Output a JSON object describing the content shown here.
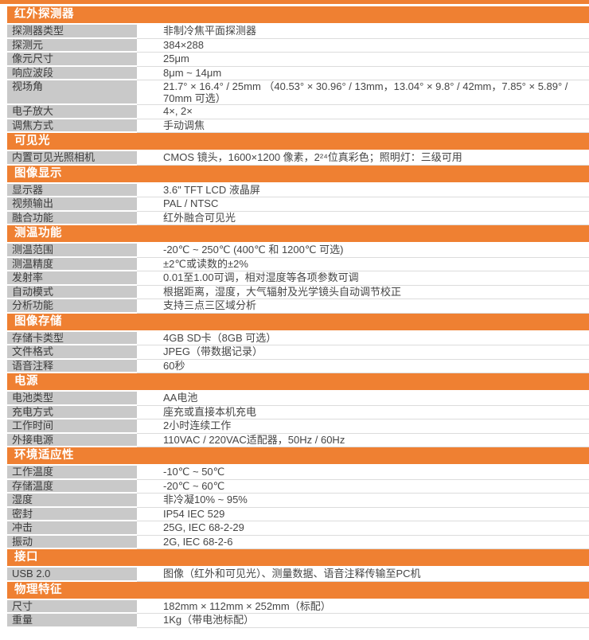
{
  "colors": {
    "accent_orange": "#EF8032",
    "label_gray": "#C9C9C9",
    "row_separator": "#DCDCDC",
    "header_text": "#FFFFFF"
  },
  "sections": [
    {
      "title": "红外探测器",
      "rows": [
        {
          "label": "探测器类型",
          "value": "非制冷焦平面探测器"
        },
        {
          "label": "探测元",
          "value": "384×288"
        },
        {
          "label": "像元尺寸",
          "value": "25μm"
        },
        {
          "label": "响应波段",
          "value": "8μm ~ 14μm"
        },
        {
          "label": "视场角",
          "value": "21.7° × 16.4° / 25mm （40.53° × 30.96° / 13mm，13.04° × 9.8° / 42mm，7.85° × 5.89° / 70mm 可选）"
        },
        {
          "label": "电子放大",
          "value": "4×, 2×"
        },
        {
          "label": "调焦方式",
          "value": "手动调焦"
        }
      ]
    },
    {
      "title": "可见光",
      "rows": [
        {
          "label": "内置可见光照相机",
          "value": "CMOS 镜头，1600×1200 像素，2²⁴位真彩色；照明灯：三级可用"
        }
      ]
    },
    {
      "title": "图像显示",
      "rows": [
        {
          "label": "显示器",
          "value": "3.6\" TFT LCD 液晶屏"
        },
        {
          "label": "视频输出",
          "value": "PAL / NTSC"
        },
        {
          "label": "融合功能",
          "value": "红外融合可见光"
        }
      ]
    },
    {
      "title": "测温功能",
      "rows": [
        {
          "label": "测温范围",
          "value": "-20℃ ~ 250℃ (400℃ 和 1200℃ 可选)"
        },
        {
          "label": "测温精度",
          "value": "±2℃或读数的±2%"
        },
        {
          "label": "发射率",
          "value": "0.01至1.00可调，相对湿度等各项参数可调"
        },
        {
          "label": "自动模式",
          "value": "根据距离，湿度，大气辐射及光学镜头自动调节校正"
        },
        {
          "label": "分析功能",
          "value": "支持三点三区域分析"
        }
      ]
    },
    {
      "title": "图像存储",
      "rows": [
        {
          "label": "存储卡类型",
          "value": "4GB SD卡（8GB 可选）"
        },
        {
          "label": "文件格式",
          "value": "JPEG（带数据记录）"
        },
        {
          "label": "语音注释",
          "value": "60秒"
        }
      ]
    },
    {
      "title": "电源",
      "rows": [
        {
          "label": "电池类型",
          "value": "AA电池"
        },
        {
          "label": "充电方式",
          "value": "座充或直接本机充电"
        },
        {
          "label": "工作时间",
          "value": "2小时连续工作"
        },
        {
          "label": "外接电源",
          "value": "110VAC / 220VAC适配器，50Hz / 60Hz"
        }
      ]
    },
    {
      "title": "环境适应性",
      "rows": [
        {
          "label": "工作温度",
          "value": "-10℃ ~ 50℃"
        },
        {
          "label": "存储温度",
          "value": "-20℃ ~ 60℃"
        },
        {
          "label": "湿度",
          "value": "非冷凝10% ~ 95%"
        },
        {
          "label": "密封",
          "value": "IP54 IEC 529"
        },
        {
          "label": "冲击",
          "value": "25G, IEC 68-2-29"
        },
        {
          "label": "振动",
          "value": "2G, IEC 68-2-6"
        }
      ]
    },
    {
      "title": "接口",
      "rows": [
        {
          "label": "USB 2.0",
          "value": "图像（红外和可见光）、测量数据、语音注释传输至PC机"
        }
      ]
    },
    {
      "title": "物理特征",
      "rows": [
        {
          "label": "尺寸",
          "value": "182mm × 112mm × 252mm（标配）"
        },
        {
          "label": "重量",
          "value": "1Kg（带电池标配）"
        }
      ]
    }
  ]
}
